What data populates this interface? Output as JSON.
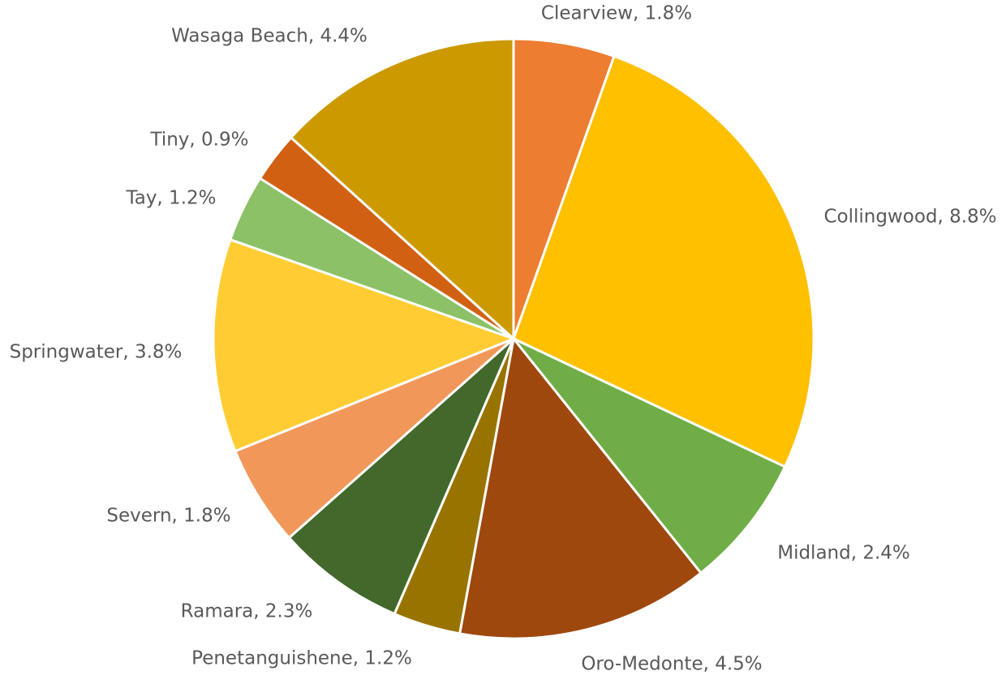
{
  "chart_data": {
    "type": "pie",
    "values": [
      1.8,
      8.8,
      2.4,
      4.5,
      1.2,
      2.3,
      1.8,
      3.8,
      1.2,
      0.9,
      4.4
    ],
    "value_labels": [
      "Clearview, 1.8%",
      "Collingwood, 8.8%",
      "Midland, 2.4%",
      "Oro-Medonte, 4.5%",
      "Penetanguishene, 1.2%",
      "Ramara, 2.3%",
      "Severn, 1.8%",
      "Springwater, 3.8%",
      "Tay, 1.2%",
      "Tiny, 0.9%",
      "Wasaga Beach, 4.4%"
    ],
    "colors": [
      "#ED7D31",
      "#FFC000",
      "#70AD47",
      "#9E480E",
      "#997300",
      "#43682B",
      "#F1975A",
      "#FFCD33",
      "#8CC168",
      "#D26012",
      "#CC9A00"
    ]
  }
}
